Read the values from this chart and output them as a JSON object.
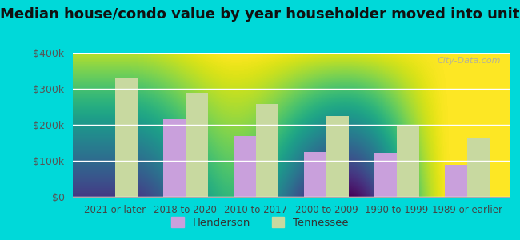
{
  "title": "Median house/condo value by year householder moved into unit",
  "categories": [
    "2021 or later",
    "2018 to 2020",
    "2010 to 2017",
    "2000 to 2009",
    "1990 to 1999",
    "1989 or earlier"
  ],
  "henderson_values": [
    null,
    215000,
    170000,
    125000,
    122000,
    90000
  ],
  "tennessee_values": [
    330000,
    290000,
    258000,
    225000,
    200000,
    165000
  ],
  "henderson_color": "#c9a0dc",
  "tennessee_color": "#c8d9a0",
  "henderson_label": "Henderson",
  "tennessee_label": "Tennessee",
  "ylim": [
    0,
    400000
  ],
  "yticks": [
    0,
    100000,
    200000,
    300000,
    400000
  ],
  "ytick_labels": [
    "$0",
    "$100k",
    "$200k",
    "$300k",
    "$400k"
  ],
  "plot_bg_top": "#f5fffb",
  "plot_bg_bottom": "#d8f0d0",
  "outer_background": "#00d9d9",
  "bar_width": 0.32,
  "title_fontsize": 13,
  "axis_label_fontsize": 8.5,
  "ytick_fontsize": 9,
  "watermark_text": "City-Data.com",
  "grid_color": "#e0ece0"
}
